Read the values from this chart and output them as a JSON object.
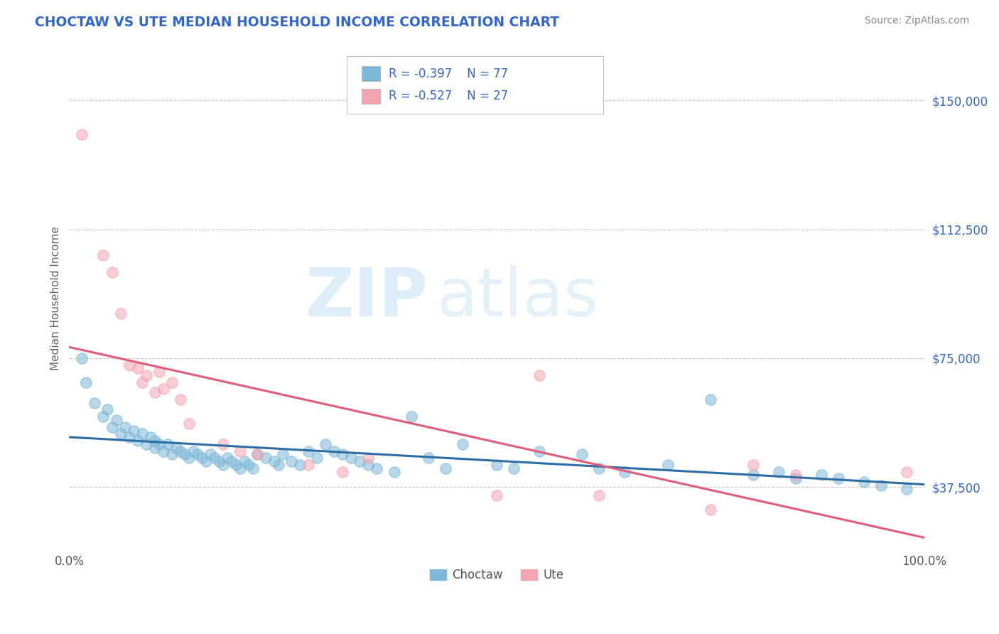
{
  "title": "CHOCTAW VS UTE MEDIAN HOUSEHOLD INCOME CORRELATION CHART",
  "source_text": "Source: ZipAtlas.com",
  "ylabel": "Median Household Income",
  "xlim": [
    0.0,
    1.0
  ],
  "ylim": [
    20000,
    165000
  ],
  "yticks": [
    37500,
    75000,
    112500,
    150000
  ],
  "ytick_labels": [
    "$37,500",
    "$75,000",
    "$112,500",
    "$150,000"
  ],
  "xticks": [
    0.0,
    1.0
  ],
  "xtick_labels": [
    "0.0%",
    "100.0%"
  ],
  "choctaw_color": "#7eb8d8",
  "ute_color": "#f4a4b0",
  "choctaw_R": -0.397,
  "choctaw_N": 77,
  "ute_R": -0.527,
  "ute_N": 27,
  "choctaw_line_color": "#2e6da4",
  "ute_line_color": "#e05c78",
  "axis_label_color": "#3366cc",
  "text_color": "#333333",
  "watermark_zip": "ZIP",
  "watermark_atlas": "atlas",
  "background_color": "#ffffff",
  "grid_color": "#c8c8c8",
  "title_color": "#3366cc",
  "source_color": "#888888",
  "choctaw_x": [
    0.015,
    0.02,
    0.03,
    0.04,
    0.045,
    0.05,
    0.055,
    0.06,
    0.065,
    0.07,
    0.075,
    0.08,
    0.085,
    0.09,
    0.095,
    0.1,
    0.1,
    0.105,
    0.11,
    0.115,
    0.12,
    0.125,
    0.13,
    0.135,
    0.14,
    0.145,
    0.15,
    0.155,
    0.16,
    0.165,
    0.17,
    0.175,
    0.18,
    0.185,
    0.19,
    0.195,
    0.2,
    0.205,
    0.21,
    0.215,
    0.22,
    0.23,
    0.24,
    0.245,
    0.25,
    0.26,
    0.27,
    0.28,
    0.29,
    0.3,
    0.31,
    0.32,
    0.33,
    0.34,
    0.35,
    0.36,
    0.38,
    0.4,
    0.42,
    0.44,
    0.46,
    0.5,
    0.52,
    0.55,
    0.6,
    0.62,
    0.65,
    0.7,
    0.75,
    0.8,
    0.83,
    0.85,
    0.88,
    0.9,
    0.93,
    0.95,
    0.98
  ],
  "choctaw_y": [
    75000,
    68000,
    62000,
    58000,
    60000,
    55000,
    57000,
    53000,
    55000,
    52000,
    54000,
    51000,
    53000,
    50000,
    52000,
    49000,
    51000,
    50000,
    48000,
    50000,
    47000,
    49000,
    48000,
    47000,
    46000,
    48000,
    47000,
    46000,
    45000,
    47000,
    46000,
    45000,
    44000,
    46000,
    45000,
    44000,
    43000,
    45000,
    44000,
    43000,
    47000,
    46000,
    45000,
    44000,
    47000,
    45000,
    44000,
    48000,
    46000,
    50000,
    48000,
    47000,
    46000,
    45000,
    44000,
    43000,
    42000,
    58000,
    46000,
    43000,
    50000,
    44000,
    43000,
    48000,
    47000,
    43000,
    42000,
    44000,
    63000,
    41000,
    42000,
    40000,
    41000,
    40000,
    39000,
    38000,
    37000
  ],
  "ute_x": [
    0.015,
    0.04,
    0.05,
    0.06,
    0.07,
    0.08,
    0.085,
    0.09,
    0.1,
    0.105,
    0.11,
    0.12,
    0.13,
    0.14,
    0.18,
    0.2,
    0.22,
    0.28,
    0.32,
    0.35,
    0.5,
    0.55,
    0.62,
    0.75,
    0.8,
    0.85,
    0.98
  ],
  "ute_y": [
    140000,
    105000,
    100000,
    88000,
    73000,
    72000,
    68000,
    70000,
    65000,
    71000,
    66000,
    68000,
    63000,
    56000,
    50000,
    48000,
    47000,
    44000,
    42000,
    46000,
    35000,
    70000,
    35000,
    31000,
    44000,
    41000,
    42000
  ]
}
